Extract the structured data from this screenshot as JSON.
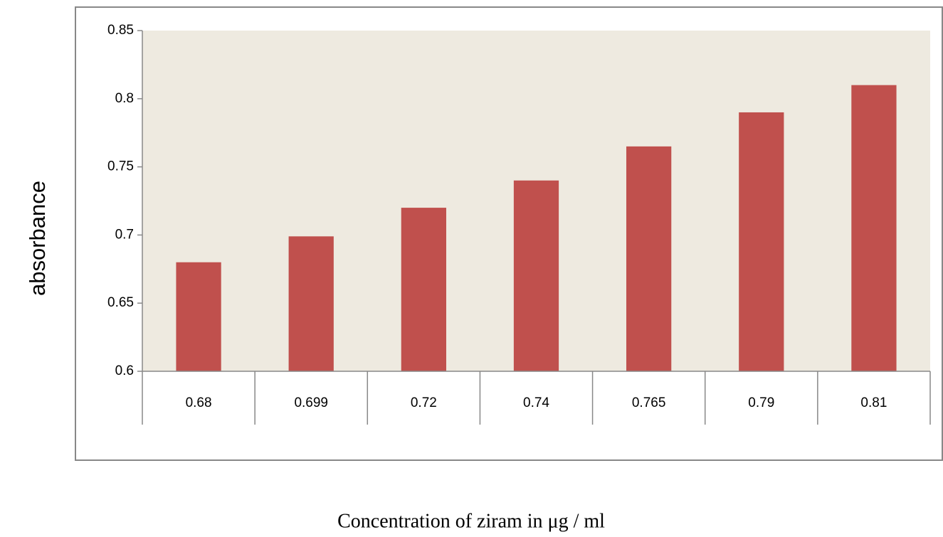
{
  "chart_data": {
    "type": "bar",
    "xlabel": "Concentration of ziram in μg / ml",
    "ylabel": "absorbance",
    "categories": [
      "0.68",
      "0.699",
      "0.72",
      "0.74",
      "0.765",
      "0.79",
      "0.81"
    ],
    "values": [
      0.68,
      0.699,
      0.72,
      0.74,
      0.765,
      0.79,
      0.81
    ],
    "color": "#c0504d",
    "ylim": [
      0.6,
      0.85
    ],
    "yticks": [
      0.6,
      0.65,
      0.7,
      0.75,
      0.8,
      0.85
    ]
  }
}
